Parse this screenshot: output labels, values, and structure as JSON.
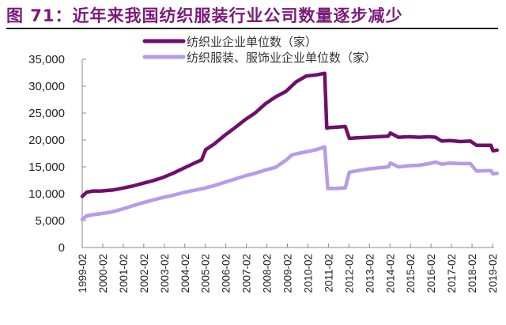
{
  "title": "图 71：近年来我国纺织服装行业公司数量逐步减少",
  "chart_data": {
    "type": "line",
    "title": "图 71：近年来我国纺织服装行业公司数量逐步减少",
    "xlabel": "",
    "ylabel": "",
    "ylim": [
      0,
      35000
    ],
    "yticks": [
      "0",
      "5,000",
      "10,000",
      "15,000",
      "20,000",
      "25,000",
      "30,000",
      "35,000"
    ],
    "categories": [
      "1999-02",
      "2000-02",
      "2001-02",
      "2002-02",
      "2003-02",
      "2004-02",
      "2005-02",
      "2006-02",
      "2007-02",
      "2008-02",
      "2009-02",
      "2010-02",
      "2011-02",
      "2012-02",
      "2013-02",
      "2014-02",
      "2015-02",
      "2016-02",
      "2017-02",
      "2018-02",
      "2019-02"
    ],
    "grid": false,
    "legend_position": "top",
    "series": [
      {
        "name": "纺织业企业单位数（家）",
        "color": "#6e0f6e",
        "x": [
          1999.08,
          1999.3,
          1999.6,
          2000.0,
          2000.3,
          2000.6,
          2001.0,
          2001.5,
          2002.0,
          2002.5,
          2003.0,
          2003.5,
          2004.0,
          2004.5,
          2004.9,
          2005.1,
          2005.5,
          2006.0,
          2006.5,
          2007.0,
          2007.5,
          2008.0,
          2008.5,
          2009.0,
          2009.5,
          2010.0,
          2010.5,
          2010.9,
          2011.0,
          2011.1,
          2011.5,
          2011.9,
          2012.1,
          2012.5,
          2013.0,
          2013.5,
          2014.0,
          2014.1,
          2014.5,
          2015.0,
          2015.5,
          2016.0,
          2016.3,
          2016.6,
          2017.0,
          2017.5,
          2018.0,
          2018.3,
          2019.0,
          2019.1,
          2019.3
        ],
        "values": [
          9500,
          10300,
          10500,
          10500,
          10600,
          10700,
          11000,
          11400,
          11900,
          12400,
          13000,
          13800,
          14700,
          15600,
          16300,
          18200,
          19200,
          20800,
          22200,
          23700,
          25000,
          26700,
          28000,
          29000,
          30800,
          31900,
          32100,
          32400,
          22200,
          22300,
          22400,
          22500,
          20300,
          20400,
          20500,
          20600,
          20700,
          21300,
          20500,
          20600,
          20500,
          20600,
          20500,
          19800,
          19900,
          19700,
          19800,
          19000,
          19000,
          18000,
          18100
        ]
      },
      {
        "name": "纺织服装、服饰业企业单位数（家）",
        "color": "#b79be8",
        "x": [
          1999.08,
          1999.3,
          1999.6,
          2000.0,
          2000.5,
          2001.0,
          2001.5,
          2002.0,
          2002.5,
          2003.0,
          2003.5,
          2004.0,
          2004.5,
          2005.0,
          2005.5,
          2006.0,
          2006.5,
          2007.0,
          2007.5,
          2008.0,
          2008.5,
          2009.0,
          2009.3,
          2009.6,
          2010.0,
          2010.5,
          2010.9,
          2011.05,
          2011.5,
          2011.9,
          2012.1,
          2012.5,
          2013.0,
          2013.5,
          2014.0,
          2014.1,
          2014.5,
          2015.0,
          2015.5,
          2016.0,
          2016.3,
          2016.6,
          2017.0,
          2017.5,
          2018.0,
          2018.3,
          2019.0,
          2019.1,
          2019.3
        ],
        "values": [
          5200,
          5900,
          6100,
          6300,
          6600,
          7100,
          7700,
          8300,
          8800,
          9300,
          9700,
          10200,
          10600,
          11000,
          11500,
          12100,
          12700,
          13300,
          13800,
          14400,
          14900,
          16200,
          17200,
          17500,
          17800,
          18200,
          18700,
          11000,
          11000,
          11100,
          14000,
          14300,
          14600,
          14800,
          15000,
          15700,
          15000,
          15200,
          15300,
          15600,
          15900,
          15500,
          15700,
          15600,
          15600,
          14200,
          14300,
          13700,
          13800
        ]
      }
    ]
  },
  "legend": [
    {
      "label": "纺织业企业单位数（家）",
      "color": "#6e0f6e"
    },
    {
      "label": "纺织服装、服饰业企业单位数（家）",
      "color": "#b79be8"
    }
  ]
}
